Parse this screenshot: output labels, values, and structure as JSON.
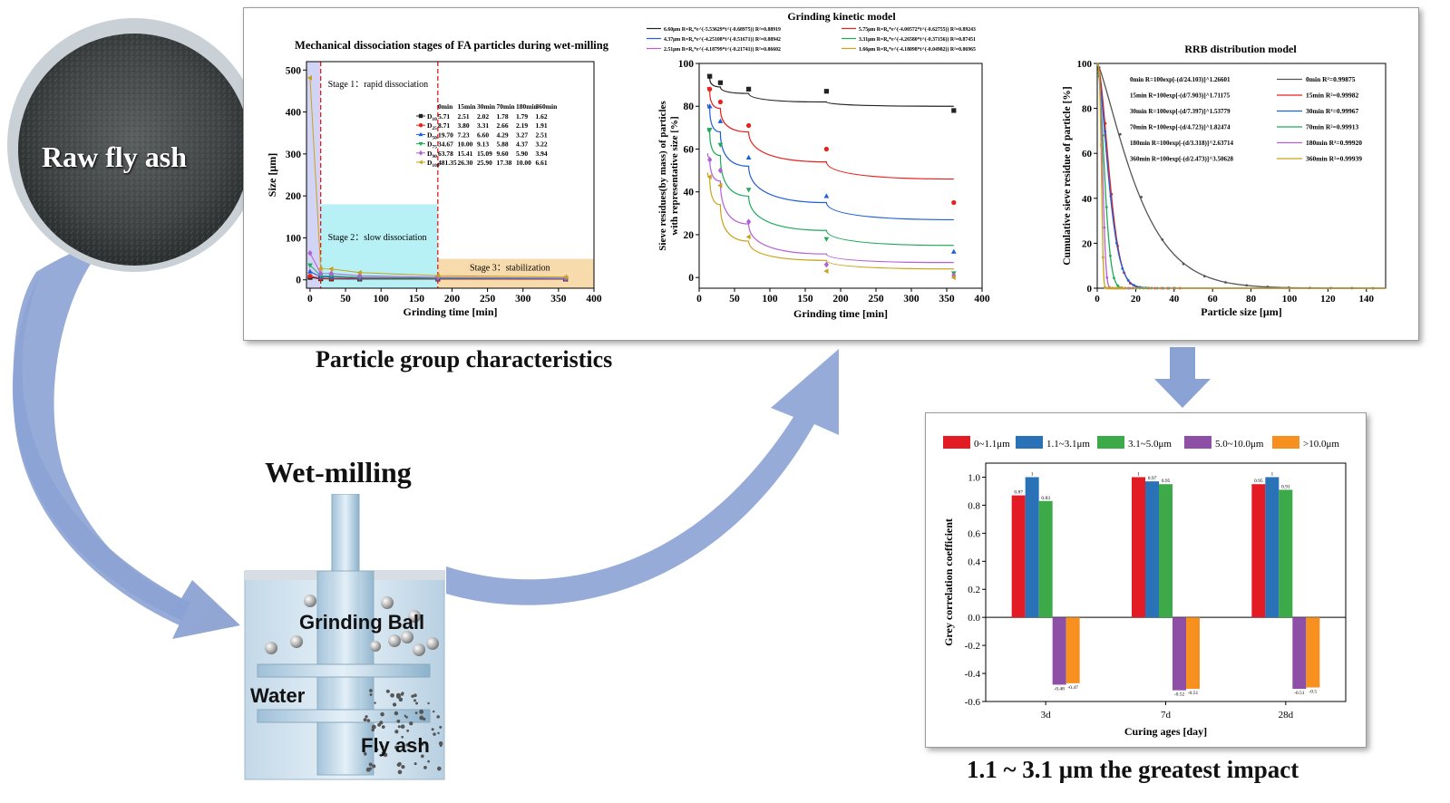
{
  "labels": {
    "raw_fly_ash": "Raw fly ash",
    "particle_group": "Particle group characteristics",
    "wet_milling": "Wet-milling",
    "grinding_ball": "Grinding Ball",
    "water": "Water",
    "fly_ash": "Fly ash",
    "greatest_impact": "1.1 ~ 3.1 μm the greatest impact"
  },
  "chart_data": [
    {
      "type": "line",
      "title": "Mechanical dissociation stages of FA particles during wet-milling",
      "xlabel": "Grinding time [min]",
      "ylabel": "Size [μm]",
      "xlim": [
        -5,
        400
      ],
      "ylim": [
        -20,
        520
      ],
      "xticks": [
        0,
        50,
        100,
        150,
        200,
        250,
        300,
        350,
        400
      ],
      "yticks": [
        0,
        100,
        200,
        300,
        400,
        500
      ],
      "stages": [
        "Stage 1：rapid dissociation",
        "Stage 2：slow dissociation",
        "Stage 3：stabilization"
      ],
      "stage_boundaries": [
        15,
        180
      ],
      "x": [
        0,
        15,
        30,
        70,
        180,
        360
      ],
      "table_header": [
        "0min",
        "15min",
        "30min",
        "70min",
        "180min",
        "360min"
      ],
      "series": [
        {
          "name": "D10",
          "sub": "10",
          "color": "#222222",
          "marker": "square",
          "values": [
            5.71,
            2.51,
            2.02,
            1.78,
            1.79,
            1.62
          ]
        },
        {
          "name": "D25",
          "sub": "25",
          "color": "#e8201e",
          "marker": "circle",
          "values": [
            8.71,
            3.8,
            3.31,
            2.66,
            2.19,
            1.91
          ]
        },
        {
          "name": "D50",
          "sub": "50",
          "color": "#1e5fd6",
          "marker": "triup",
          "values": [
            19.7,
            7.23,
            6.6,
            4.29,
            3.27,
            2.51
          ]
        },
        {
          "name": "D75",
          "sub": "75",
          "color": "#1faa5a",
          "marker": "tridown",
          "values": [
            34.67,
            10.0,
            9.13,
            5.88,
            4.37,
            3.22
          ]
        },
        {
          "name": "D90",
          "sub": "90",
          "color": "#b35fd6",
          "marker": "diamond",
          "values": [
            63.78,
            15.41,
            15.09,
            9.6,
            5.9,
            3.94
          ]
        },
        {
          "name": "D100",
          "sub": "100",
          "color": "#c9a21a",
          "marker": "trileft",
          "values": [
            481.35,
            26.3,
            25.9,
            17.38,
            10.0,
            6.61
          ]
        }
      ]
    },
    {
      "type": "scatter",
      "title": "Grinding kinetic model",
      "xlabel": "Grinding time [min]",
      "ylabel": "Sieve residues(by mass) of particles with representative size [%]",
      "xlim": [
        0,
        400
      ],
      "ylim": [
        -5,
        100
      ],
      "xticks": [
        0,
        50,
        100,
        150,
        200,
        250,
        300,
        350,
        400
      ],
      "yticks": [
        0,
        20,
        40,
        60,
        80,
        100
      ],
      "x": [
        15,
        30,
        70,
        180,
        360
      ],
      "legend": [
        "6.60μm R=R₀*e^(-5.53629*t^(-0.68975)) R²=0.88919",
        "5.75μm R=R₀*e^(-4.00572*t^(-0.62755)) R²=0.89243",
        "4.37μm R=R₀*e^(-4.25108*t^(-0.51671)) R²=0.88942",
        "3.31μm R=R₀*e^(-4.26580*t^(-0.37156)) R²=0.87451",
        "2.51μm R=R₀*e^(-4.18799*t^(-0.21741)) R²=0.86602",
        "1.66μm R=R₀*e^(-4.18098*t^(-0.04982)) R²=0.86965"
      ],
      "series": [
        {
          "color": "#222222",
          "marker": "square",
          "values": [
            94,
            91,
            88,
            87,
            78
          ],
          "fit": [
            93,
            89,
            86,
            82,
            80
          ]
        },
        {
          "color": "#e8201e",
          "marker": "circle",
          "values": [
            88,
            82,
            71,
            60,
            35
          ],
          "fit": [
            87,
            79,
            68,
            54,
            46
          ]
        },
        {
          "color": "#1e5fd6",
          "marker": "triup",
          "values": [
            80,
            73,
            56,
            38,
            12
          ],
          "fit": [
            79,
            68,
            52,
            35,
            27
          ]
        },
        {
          "color": "#1faa5a",
          "marker": "tridown",
          "values": [
            69,
            62,
            41,
            18,
            2
          ],
          "fit": [
            68,
            57,
            38,
            22,
            15
          ]
        },
        {
          "color": "#b35fd6",
          "marker": "diamond",
          "values": [
            55,
            50,
            26,
            6,
            1
          ],
          "fit": [
            56,
            45,
            25,
            11,
            7
          ]
        },
        {
          "color": "#c9a21a",
          "marker": "trileft",
          "values": [
            47,
            43,
            19,
            3,
            0
          ],
          "fit": [
            47,
            34,
            17,
            8,
            4
          ]
        }
      ]
    },
    {
      "type": "scatter",
      "title": "RRB distribution model",
      "xlabel": "Particle size [μm]",
      "ylabel": "Cumulative sieve residue of particle [%]",
      "xlim": [
        0,
        150
      ],
      "ylim": [
        0,
        100
      ],
      "xticks": [
        0,
        20,
        40,
        60,
        80,
        100,
        120,
        140
      ],
      "yticks": [
        0,
        20,
        40,
        60,
        80,
        100
      ],
      "equations": [
        "0min R=100exp[-(d/24.103)]^1.26601",
        "15min R=100exp[-(d/7.903)]^1.71175",
        "30min R=100exp[-(d/7.397)]^1.53779",
        "70min R=100exp[-(d/4.723)]^1.82474",
        "180min R=100exp[-(d/3.318)]^2.63714",
        "360min R=100exp[-(d/2.473)]^3.50628"
      ],
      "series": [
        {
          "name": "0min R²=0.99875",
          "color": "#555555",
          "scale": 24.103,
          "shape": 1.26601
        },
        {
          "name": "15min R²=0.99982",
          "color": "#e8201e",
          "scale": 7.903,
          "shape": 1.71175
        },
        {
          "name": "30min R²=0.99967",
          "color": "#1e5fd6",
          "scale": 7.397,
          "shape": 1.53779
        },
        {
          "name": "70min R²=0.99913",
          "color": "#1faa5a",
          "scale": 4.723,
          "shape": 1.82474
        },
        {
          "name": "180min R²=0.99920",
          "color": "#b35fd6",
          "scale": 3.318,
          "shape": 2.63714
        },
        {
          "name": "360min R²=0.99939",
          "color": "#c9a21a",
          "scale": 2.473,
          "shape": 3.50628
        }
      ]
    },
    {
      "type": "bar",
      "title": "",
      "xlabel": "Curing ages [day]",
      "ylabel": "Grey correlation coefficient",
      "categories": [
        "3d",
        "7d",
        "28d"
      ],
      "ylim": [
        -0.6,
        1.1
      ],
      "yticks": [
        1.0,
        0.8,
        0.6,
        0.4,
        0.2,
        0.0,
        -0.2,
        -0.4,
        -0.6
      ],
      "series": [
        {
          "name": "0~1.1μm",
          "color": "#e21b24",
          "values": [
            0.87,
            1,
            0.95
          ],
          "labels": [
            "0.87",
            "1",
            "0.95"
          ]
        },
        {
          "name": "1.1~3.1μm",
          "color": "#2a72b8",
          "values": [
            1,
            0.97,
            1
          ],
          "labels": [
            "1",
            "0.97",
            "1"
          ]
        },
        {
          "name": "3.1~5.0μm",
          "color": "#3caa48",
          "values": [
            0.83,
            0.95,
            0.91
          ],
          "labels": [
            "0.83",
            "0.95",
            "0.91"
          ]
        },
        {
          "name": "5.0~10.0μm",
          "color": "#8e4fa6",
          "values": [
            -0.48,
            -0.52,
            -0.51
          ],
          "labels": [
            "-0.48",
            "-0.52",
            "-0.51"
          ]
        },
        {
          "name": ">10.0μm",
          "color": "#f7901e",
          "values": [
            -0.47,
            -0.51,
            -0.5
          ],
          "labels": [
            "-0.47",
            "-0.51",
            "-0.5"
          ]
        }
      ]
    }
  ]
}
